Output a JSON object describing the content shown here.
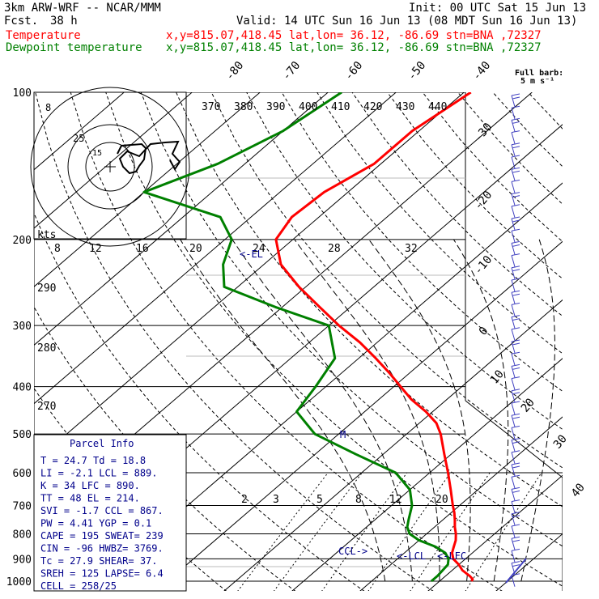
{
  "header": {
    "model": "3km ARW-WRF -- NCAR/MMM",
    "fcst_label": "Fcst.",
    "fcst_value": "38 h",
    "init": "Init: 00 UTC Sat 15 Jun 13",
    "valid": "Valid: 14 UTC Sun 16 Jun 13 (08 MDT Sun 16 Jun 13)",
    "temp_label": "Temperature",
    "temp_loc": "x,y=815.07,418.45   lat,lon= 36.12, -86.69   stn=BNA ,72327",
    "dew_label": "Dewpoint temperature",
    "dew_loc": "x,y=815.07,418.45   lat,lon= 36.12, -86.69   stn=BNA ,72327",
    "barb_note_1": "Full barb:",
    "barb_note_2": "5 m s⁻¹"
  },
  "colors": {
    "temperature": "#ff0000",
    "dewpoint": "#008000",
    "parcel_info": "#00008b",
    "grid": "#000000"
  },
  "chart_data": {
    "type": "line",
    "title": "",
    "y_axis": "pressure (hPa, log)",
    "x_axis": "temperature (°C, skewed)",
    "pressure_levels": [
      100,
      200,
      300,
      400,
      500,
      600,
      700,
      800,
      900,
      1000
    ],
    "isotherm_labels": [
      -80,
      -70,
      -60,
      -50,
      -40,
      -30,
      -20,
      -10,
      0,
      10,
      20,
      30,
      40
    ],
    "theta_labels": [
      370,
      380,
      390,
      400,
      410,
      420,
      430,
      440
    ],
    "theta_left_labels": [
      290,
      280,
      270
    ],
    "mixing_ratio_labels": [
      2,
      3,
      5,
      8,
      12,
      20
    ],
    "knots_label": "kts",
    "knots_labels": [
      8,
      12,
      16,
      20,
      24,
      28,
      32
    ],
    "series": [
      {
        "name": "Temperature",
        "p": [
          1000,
          990,
          975,
          950,
          925,
          900,
          875,
          850,
          825,
          800,
          775,
          750,
          725,
          700,
          650,
          600,
          550,
          500,
          475,
          450,
          425,
          400,
          375,
          350,
          325,
          300,
          275,
          250,
          225,
          200,
          180,
          160,
          140,
          120,
          100
        ],
        "t": [
          24.7,
          24.5,
          23.5,
          21.5,
          20.0,
          18.2,
          17.0,
          16.2,
          15.4,
          14.3,
          13.0,
          11.8,
          10.5,
          9.0,
          6.0,
          2.7,
          -1.0,
          -5.0,
          -7.5,
          -11.0,
          -15.2,
          -19.0,
          -23.0,
          -27.5,
          -32.5,
          -38.5,
          -44.5,
          -51.0,
          -57.5,
          -62.5,
          -64.0,
          -63.5,
          -61.0,
          -61.0,
          -59.0
        ]
      },
      {
        "name": "Dewpoint temperature",
        "p": [
          1000,
          975,
          950,
          925,
          900,
          875,
          850,
          825,
          800,
          775,
          750,
          700,
          650,
          600,
          550,
          500,
          450,
          400,
          350,
          300,
          275,
          250,
          225,
          200,
          180,
          160,
          140,
          120,
          100
        ],
        "t": [
          18.8,
          18.8,
          18.6,
          18.4,
          17.5,
          16.0,
          13.5,
          10.0,
          7.5,
          6.0,
          5.0,
          3.0,
          0.0,
          -5.0,
          -14.0,
          -23.5,
          -30.0,
          -31.5,
          -33.5,
          -40.0,
          -51.0,
          -62.0,
          -66.0,
          -69.0,
          -74.5,
          -90.0,
          -84.0,
          -80.0,
          -78.0
        ]
      }
    ],
    "markers": {
      "lcl": "LCL",
      "lfc": "LFC",
      "ccl": "CCL",
      "el": "EL",
      "mark": "M"
    },
    "hodograph": {
      "ring_labels": [
        "8",
        "25",
        "15"
      ]
    }
  },
  "parcel_info": {
    "title": "Parcel Info",
    "rows": [
      "T  =  24.7  Td =  18.8",
      "LI =  -2.1  LCL =  889.",
      "K  =    34  LFC =  890.",
      "TT =    48  EL  =  214.",
      "SVI =  -1.7  CCL =  867.",
      "PW =  4.41  YGP =   0.1",
      "CAPE =  195  SWEAT=  239",
      "CIN  =  -96  HWBZ= 3769.",
      "Tc   = 27.9  SHEAR=  37.",
      "SREH =  125  LAPSE=  6.4",
      "CELL = 258/25"
    ]
  }
}
